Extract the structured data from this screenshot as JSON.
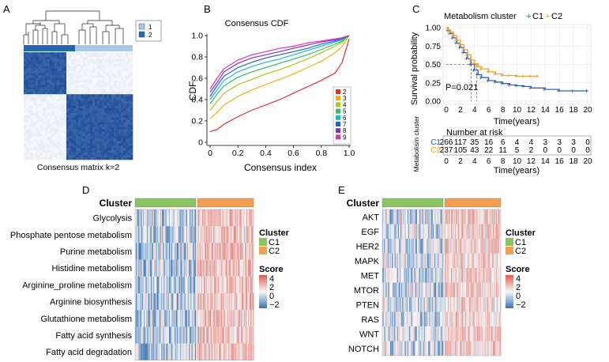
{
  "colors": {
    "c1": "#2f5fb3",
    "c2": "#f0a030",
    "cluster_c1": "#8cc464",
    "cluster_c2": "#f0a050",
    "matrix_dark": "#1f4e9a",
    "matrix_light": "#f7f9fc",
    "score_high": "#e35a4f",
    "score_mid": "#f7f7f7",
    "score_low": "#3a74b0"
  },
  "panels": {
    "A": {
      "letter": "A",
      "caption": "Consensus matrix k=2",
      "legend": [
        "1",
        "2"
      ],
      "legend_colors": [
        "#a9c8e8",
        "#2568b0"
      ]
    },
    "B": {
      "letter": "B"
    },
    "C": {
      "letter": "C"
    },
    "D": {
      "letter": "D",
      "cluster_label": "Cluster",
      "rows": [
        "Glycolysis",
        "Phosphate pentose metabolism",
        "Purine metabolism",
        "Histidine metabolism",
        "Arginine_proline metabolism",
        "Arginine biosynthesis",
        "Glutathione metabolism",
        "Fatty acid synthesis",
        "Fatty acid degradation"
      ],
      "legend_cluster_title": "Cluster",
      "legend_cluster": [
        "C1",
        "C2"
      ],
      "legend_score_title": "Score",
      "legend_score_ticks": [
        "4",
        "2",
        "0",
        "−2"
      ]
    },
    "E": {
      "letter": "E",
      "cluster_label": "Cluster",
      "rows": [
        "AKT",
        "EGF",
        "HER2",
        "MAPK",
        "MET",
        "MTOR",
        "PTEN",
        "RAS",
        "WNT",
        "NOTCH"
      ],
      "legend_cluster_title": "Cluster",
      "legend_cluster": [
        "C1",
        "C2"
      ],
      "legend_score_title": "Score",
      "legend_score_ticks": [
        "4",
        "2",
        "0",
        "−2"
      ]
    }
  },
  "chart_data": [
    {
      "type": "heatmap",
      "panel": "A",
      "title": "Consensus matrix k=2",
      "clusters": [
        "1",
        "2"
      ],
      "cluster_fraction_1": 0.4
    },
    {
      "type": "line",
      "panel": "B",
      "title": "Consensus CDF",
      "xlabel": "Consensus index",
      "ylabel": "CDF",
      "xlim": [
        0,
        1
      ],
      "ylim": [
        0,
        1
      ],
      "xticks": [
        "0",
        "0.2",
        "0.4",
        "0.6",
        "0.8",
        "1.0"
      ],
      "yticks": [
        "0",
        "0.2",
        "0.4",
        "0.6",
        "0.8",
        "1.0"
      ],
      "x": [
        0,
        0.05,
        0.1,
        0.2,
        0.3,
        0.4,
        0.5,
        0.6,
        0.7,
        0.8,
        0.9,
        0.95,
        1.0
      ],
      "series": [
        {
          "name": "2",
          "color": "#e03030",
          "values": [
            0.1,
            0.12,
            0.17,
            0.24,
            0.3,
            0.35,
            0.4,
            0.46,
            0.52,
            0.58,
            0.65,
            0.75,
            0.97
          ]
        },
        {
          "name": "3",
          "color": "#f0b010",
          "values": [
            0.22,
            0.28,
            0.35,
            0.43,
            0.49,
            0.54,
            0.59,
            0.64,
            0.7,
            0.76,
            0.84,
            0.9,
            1.0
          ]
        },
        {
          "name": "4",
          "color": "#a8c814",
          "values": [
            0.3,
            0.38,
            0.46,
            0.54,
            0.59,
            0.64,
            0.68,
            0.73,
            0.78,
            0.84,
            0.9,
            0.94,
            1.0
          ]
        },
        {
          "name": "5",
          "color": "#30c060",
          "values": [
            0.36,
            0.45,
            0.53,
            0.61,
            0.66,
            0.7,
            0.74,
            0.78,
            0.82,
            0.87,
            0.92,
            0.95,
            1.0
          ]
        },
        {
          "name": "6",
          "color": "#20b8c8",
          "values": [
            0.4,
            0.49,
            0.58,
            0.66,
            0.71,
            0.75,
            0.78,
            0.82,
            0.86,
            0.9,
            0.94,
            0.96,
            1.0
          ]
        },
        {
          "name": "7",
          "color": "#2060e0",
          "values": [
            0.43,
            0.53,
            0.62,
            0.7,
            0.75,
            0.79,
            0.82,
            0.85,
            0.88,
            0.92,
            0.95,
            0.97,
            1.0
          ]
        },
        {
          "name": "8",
          "color": "#8030d8",
          "values": [
            0.47,
            0.56,
            0.66,
            0.74,
            0.79,
            0.82,
            0.85,
            0.88,
            0.91,
            0.94,
            0.96,
            0.98,
            1.0
          ]
        },
        {
          "name": "9",
          "color": "#e030b0",
          "values": [
            0.5,
            0.6,
            0.69,
            0.77,
            0.82,
            0.85,
            0.88,
            0.9,
            0.93,
            0.95,
            0.97,
            0.98,
            1.0
          ]
        }
      ]
    },
    {
      "type": "line",
      "panel": "C",
      "title": "Metabolism cluster",
      "legend_title": "Metabolism cluster",
      "legend": [
        "C1",
        "C2"
      ],
      "xlabel": "Time(years)",
      "ylabel": "Survival probability",
      "xlim": [
        0,
        20
      ],
      "ylim": [
        0,
        1
      ],
      "xticks": [
        "0",
        "2",
        "4",
        "6",
        "8",
        "10",
        "12",
        "14",
        "16",
        "18",
        "20"
      ],
      "yticks": [
        "0.00",
        "0.25",
        "0.50",
        "0.75",
        "1.00"
      ],
      "pvalue": "P=0.021",
      "median_survival": {
        "C1": 3.5,
        "C2": 4.3
      },
      "series": [
        {
          "name": "C1",
          "color": "#2f5fb3",
          "x": [
            0,
            0.3,
            0.6,
            1,
            1.5,
            2,
            2.5,
            3,
            3.5,
            4,
            4.5,
            5,
            6,
            7,
            8,
            9,
            10,
            11,
            12,
            14,
            16,
            18,
            20
          ],
          "y": [
            1.0,
            0.96,
            0.92,
            0.86,
            0.79,
            0.73,
            0.66,
            0.58,
            0.5,
            0.42,
            0.36,
            0.32,
            0.28,
            0.26,
            0.24,
            0.22,
            0.21,
            0.2,
            0.18,
            0.16,
            0.14,
            0.14,
            0.14
          ]
        },
        {
          "name": "C2",
          "color": "#f0a030",
          "x": [
            0,
            0.3,
            0.6,
            1,
            1.5,
            2,
            2.5,
            3,
            3.5,
            4,
            4.5,
            5,
            6,
            7,
            8,
            9,
            10,
            11,
            12,
            13
          ],
          "y": [
            1.0,
            0.97,
            0.94,
            0.89,
            0.83,
            0.77,
            0.7,
            0.63,
            0.56,
            0.51,
            0.47,
            0.44,
            0.4,
            0.37,
            0.35,
            0.35,
            0.34,
            0.34,
            0.34,
            0.34
          ]
        }
      ],
      "risk_table": {
        "title": "Number at risk",
        "side_label": "Metabolism cluster",
        "times": [
          "0",
          "2",
          "4",
          "6",
          "8",
          "10",
          "12",
          "14",
          "16",
          "18",
          "20"
        ],
        "rows": [
          {
            "name": "C1",
            "values": [
              "266",
              "117",
              "35",
              "16",
              "6",
              "4",
              "4",
              "3",
              "3",
              "3",
              "0"
            ]
          },
          {
            "name": "C2",
            "values": [
              "237",
              "105",
              "43",
              "22",
              "11",
              "5",
              "2",
              "0",
              "0",
              "0",
              "0"
            ]
          }
        ],
        "xlabel": "Time(years)"
      }
    },
    {
      "type": "heatmap",
      "panel": "D",
      "rows": [
        "Glycolysis",
        "Phosphate pentose metabolism",
        "Purine metabolism",
        "Histidine metabolism",
        "Arginine_proline metabolism",
        "Arginine biosynthesis",
        "Glutathione metabolism",
        "Fatty acid synthesis",
        "Fatty acid degradation"
      ],
      "groups": [
        "C1",
        "C2"
      ],
      "mean_score_by_group": {
        "C1": -0.6,
        "C2": 0.9
      },
      "score_range": [
        -2,
        4
      ]
    },
    {
      "type": "heatmap",
      "panel": "E",
      "rows": [
        "AKT",
        "EGF",
        "HER2",
        "MAPK",
        "MET",
        "MTOR",
        "PTEN",
        "RAS",
        "WNT",
        "NOTCH"
      ],
      "groups": [
        "C1",
        "C2"
      ],
      "mean_score_by_group": {
        "C1": -0.4,
        "C2": 0.7
      },
      "score_range": [
        -2,
        4
      ]
    }
  ]
}
